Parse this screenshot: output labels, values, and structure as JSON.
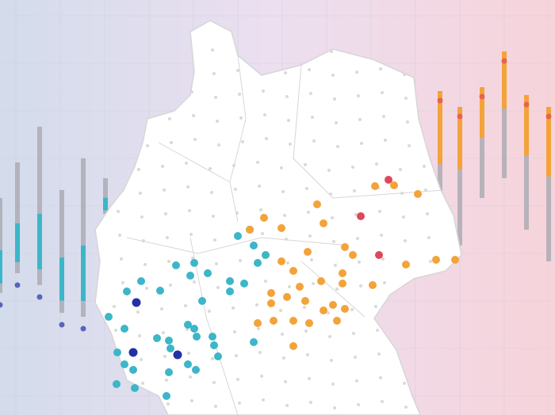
{
  "map": {
    "region": "Germany",
    "background_gradient": [
      "#d3dcec",
      "#ecdff0",
      "#f7d3da"
    ],
    "land_color": "#ffffff",
    "border_color": "#d6d6d6",
    "grid_color": "#c9c9d6",
    "point_colors": {
      "dark_blue": "#2430a8",
      "teal": "#3cb6c8",
      "orange": "#f3a33a",
      "red": "#e0475a",
      "neutral": "#d9d9d9"
    },
    "side_bar_colors": {
      "base": "#a9a9b0",
      "left_accent": "#3cb6c8",
      "right_accent": "#f3a33a"
    }
  }
}
